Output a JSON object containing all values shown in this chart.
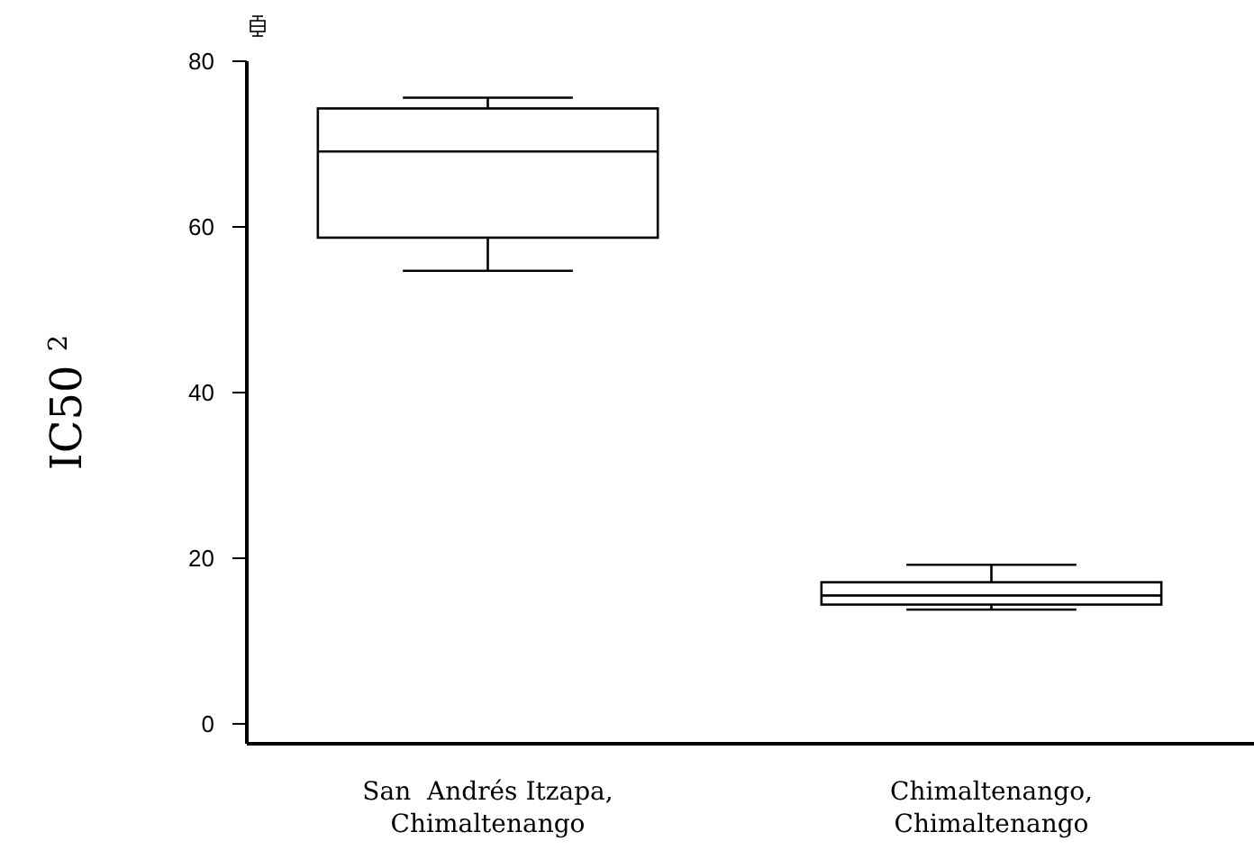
{
  "chart_data": {
    "type": "box",
    "ylabel": "IC50 $^{2}$",
    "categories": [
      "San  Andrés Itzapa,\nChimaltenango",
      "Chimaltenango,\nChimaltenango"
    ],
    "boxes": [
      {
        "low": 54.7,
        "q1": 58.7,
        "median": 69.1,
        "q3": 74.3,
        "high": 75.6
      },
      {
        "low": 13.8,
        "q1": 14.4,
        "median": 15.5,
        "q3": 17.1,
        "high": 19.2
      }
    ],
    "ylim": [
      -2.4,
      80
    ],
    "yticks": [
      0,
      20,
      40,
      60,
      80
    ],
    "grid": false
  }
}
